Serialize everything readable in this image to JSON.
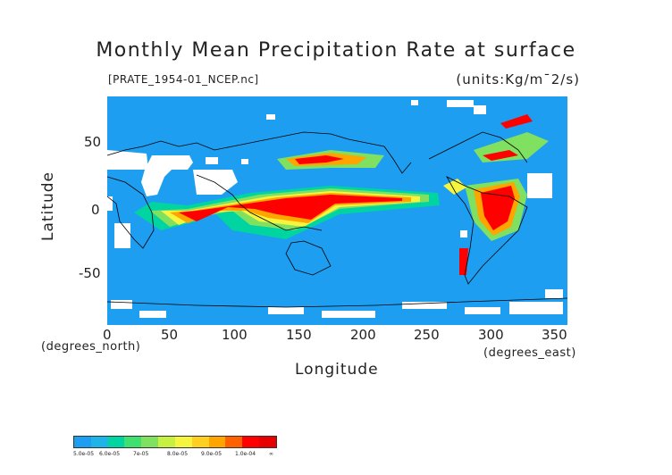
{
  "title": "Monthly Mean Precipitation Rate at surface",
  "file_label": "[PRATE_1954-01_NCEP.nc]",
  "units_label": "(units:Kg/m¯2/s)",
  "x_axis": {
    "title": "Longitude",
    "unit_note": "(degrees_east)",
    "ticks": [
      "0",
      "50",
      "100",
      "150",
      "200",
      "250",
      "300",
      "350"
    ]
  },
  "y_axis": {
    "title": "Latitude",
    "unit_note": "(degrees_north)",
    "ticks": [
      "50",
      "0",
      "-50"
    ]
  },
  "colors": {
    "ocean_low": "#1e9ef0",
    "missing": "#ffffff",
    "level1": "#00d4a0",
    "level2": "#80e060",
    "level3": "#f5f540",
    "level4": "#ffa500",
    "level5": "#ff0000",
    "coast": "#000000"
  },
  "colorbar": {
    "colors": [
      "#1e9ef0",
      "#1eb4e8",
      "#00d4a0",
      "#40e070",
      "#80e060",
      "#c8f040",
      "#f5f540",
      "#ffd020",
      "#ffa500",
      "#ff6000",
      "#ff0000",
      "#e80000"
    ],
    "labels": [
      "5.0e-05",
      "6.0e-05",
      "7e-05",
      "8.0e-05",
      "9.0e-05",
      "1.0e-04",
      "∞"
    ]
  },
  "chart_data": {
    "type": "heatmap",
    "title": "Monthly Mean Precipitation Rate at surface",
    "xlabel": "Longitude",
    "ylabel": "Latitude",
    "xlim": [
      0,
      360
    ],
    "ylim": [
      -90,
      90
    ],
    "legend_placement": "bottom-left",
    "levels": [
      5e-05,
      6e-05,
      7e-05,
      8e-05,
      9e-05,
      0.0001
    ]
  }
}
